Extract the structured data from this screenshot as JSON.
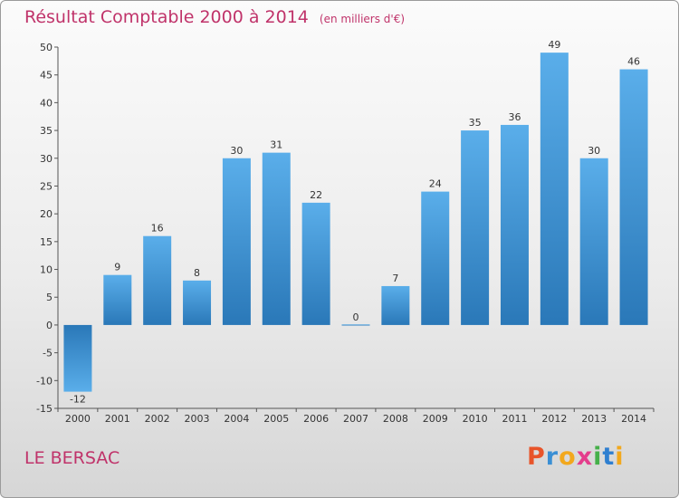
{
  "header": {
    "title": "Résultat Comptable 2000 à 2014",
    "unit": "(en milliers d'€)"
  },
  "footer": {
    "commune": "LE BERSAC",
    "brand": "Proxiti"
  },
  "colors": {
    "bar_top": "#5aaeea",
    "bar_bottom": "#2a78b8",
    "title": "#c0336a",
    "brand_letters": [
      "#e8542a",
      "#3a8fd4",
      "#f2a81d",
      "#e43d8c",
      "#46b04a",
      "#2f7fd0",
      "#f2a81d"
    ]
  },
  "chart_data": {
    "type": "bar",
    "title": "Résultat Comptable 2000 à 2014",
    "ylabel": "(en milliers d'€)",
    "xlabel": "",
    "categories": [
      "2000",
      "2001",
      "2002",
      "2003",
      "2004",
      "2005",
      "2006",
      "2007",
      "2008",
      "2009",
      "2010",
      "2011",
      "2012",
      "2013",
      "2014"
    ],
    "values": [
      -12,
      9,
      16,
      8,
      30,
      31,
      22,
      0,
      7,
      24,
      35,
      36,
      49,
      30,
      46
    ],
    "labels": [
      "-12",
      "9",
      "16",
      "8",
      "30",
      "31",
      "22",
      "0",
      "7",
      "24",
      "35",
      "36",
      "49",
      "30",
      "46"
    ],
    "ylim": [
      -15,
      50
    ],
    "yticks": [
      -15,
      -10,
      -5,
      0,
      5,
      10,
      15,
      20,
      25,
      30,
      35,
      40,
      45,
      50
    ],
    "grid": false,
    "legend": "none"
  }
}
